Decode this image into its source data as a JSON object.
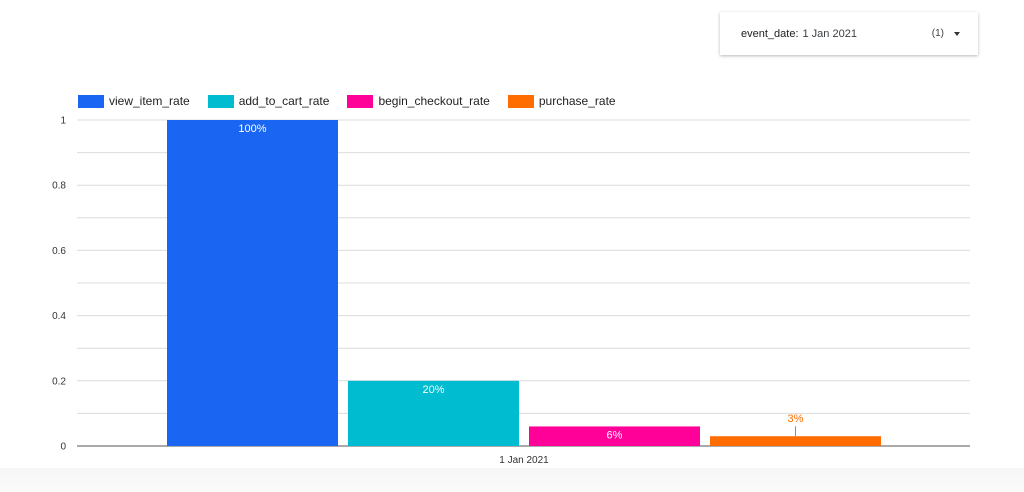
{
  "filter": {
    "label": "event_date",
    "separator": ":",
    "value": "1 Jan 2021",
    "count": "(1)",
    "caret_icon": "caret-down-icon"
  },
  "chart_data": {
    "type": "bar",
    "categories": [
      "1 Jan 2021"
    ],
    "series": [
      {
        "name": "view_item_rate",
        "values": [
          1.0
        ],
        "label": "100%",
        "color": "#1a66f2"
      },
      {
        "name": "add_to_cart_rate",
        "values": [
          0.2
        ],
        "label": "20%",
        "color": "#00bcd0"
      },
      {
        "name": "begin_checkout_rate",
        "values": [
          0.06
        ],
        "label": "6%",
        "color": "#ff0099"
      },
      {
        "name": "purchase_rate",
        "values": [
          0.03
        ],
        "label": "3%",
        "color": "#ff6d00"
      }
    ],
    "yticks": [
      "0",
      "0.2",
      "0.4",
      "0.6",
      "0.8",
      "1"
    ],
    "ylim": [
      0,
      1
    ],
    "grid": true,
    "legend": "top-left"
  }
}
